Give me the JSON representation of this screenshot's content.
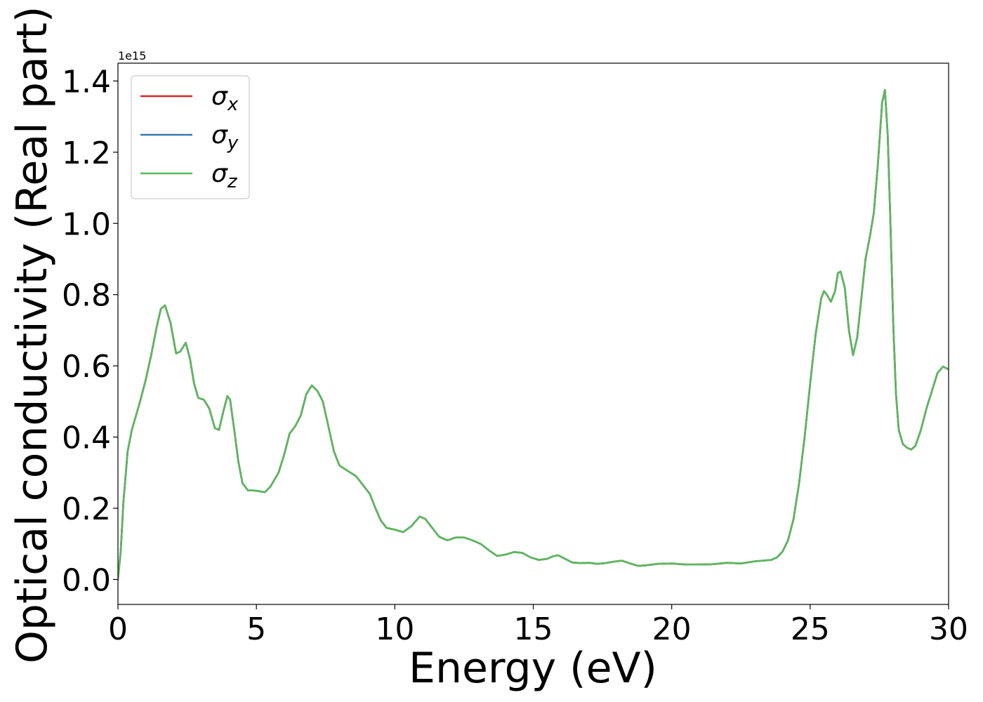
{
  "chart_data": {
    "type": "line",
    "title": "",
    "xlabel": "Energy (eV)",
    "ylabel": "Optical conductivity (Real part)",
    "y_offset_text": "1e15",
    "xlim": [
      0,
      30
    ],
    "ylim": [
      -0.07,
      1.45
    ],
    "x_ticks": [
      0,
      5,
      10,
      15,
      20,
      25,
      30
    ],
    "x_tick_labels": [
      "0",
      "5",
      "10",
      "15",
      "20",
      "25",
      "30"
    ],
    "y_ticks": [
      0.0,
      0.2,
      0.4,
      0.6,
      0.8,
      1.0,
      1.2,
      1.4
    ],
    "y_tick_labels": [
      "0.0",
      "0.2",
      "0.4",
      "0.6",
      "0.8",
      "1.0",
      "1.2",
      "1.4"
    ],
    "grid": false,
    "legend_position": "top-left",
    "series": [
      {
        "name": "σx",
        "name_base": "σ",
        "name_sub": "x",
        "color": "#d62728",
        "x": [
          0,
          0.1,
          0.2,
          0.35,
          0.5,
          0.8,
          1.0,
          1.2,
          1.4,
          1.55,
          1.7,
          1.9,
          2.1,
          2.25,
          2.45,
          2.6,
          2.75,
          2.9,
          3.1,
          3.3,
          3.5,
          3.65,
          3.8,
          3.95,
          4.05,
          4.2,
          4.35,
          4.5,
          4.7,
          4.9,
          5.1,
          5.3,
          5.5,
          5.8,
          6.0,
          6.2,
          6.4,
          6.6,
          6.8,
          7.0,
          7.2,
          7.4,
          7.6,
          7.8,
          8.0,
          8.3,
          8.6,
          8.9,
          9.1,
          9.3,
          9.5,
          9.7,
          10.0,
          10.3,
          10.6,
          10.9,
          11.1,
          11.3,
          11.6,
          11.9,
          12.2,
          12.5,
          12.8,
          13.1,
          13.4,
          13.7,
          14.0,
          14.3,
          14.6,
          14.9,
          15.2,
          15.5,
          15.7,
          15.9,
          16.1,
          16.4,
          16.7,
          17.0,
          17.3,
          17.6,
          17.9,
          18.2,
          18.5,
          18.8,
          19.1,
          19.5,
          20.0,
          20.5,
          21.0,
          21.5,
          22.0,
          22.5,
          23.0,
          23.3,
          23.6,
          23.8,
          24.0,
          24.2,
          24.4,
          24.6,
          24.8,
          25.0,
          25.2,
          25.4,
          25.5,
          25.6,
          25.75,
          25.9,
          26.0,
          26.1,
          26.25,
          26.4,
          26.55,
          26.7,
          26.85,
          27.0,
          27.15,
          27.3,
          27.45,
          27.6,
          27.7,
          27.8,
          27.9,
          28.0,
          28.1,
          28.2,
          28.35,
          28.5,
          28.65,
          28.8,
          29.0,
          29.2,
          29.4,
          29.6,
          29.8,
          30.0
        ],
        "values": [
          0.0,
          0.08,
          0.22,
          0.36,
          0.42,
          0.5,
          0.56,
          0.63,
          0.71,
          0.76,
          0.77,
          0.72,
          0.635,
          0.64,
          0.665,
          0.62,
          0.55,
          0.51,
          0.505,
          0.48,
          0.425,
          0.42,
          0.47,
          0.515,
          0.505,
          0.42,
          0.33,
          0.27,
          0.25,
          0.25,
          0.248,
          0.245,
          0.26,
          0.3,
          0.35,
          0.41,
          0.43,
          0.46,
          0.52,
          0.545,
          0.53,
          0.5,
          0.43,
          0.36,
          0.32,
          0.305,
          0.29,
          0.26,
          0.24,
          0.2,
          0.165,
          0.145,
          0.14,
          0.133,
          0.15,
          0.177,
          0.17,
          0.15,
          0.12,
          0.11,
          0.118,
          0.118,
          0.11,
          0.1,
          0.082,
          0.066,
          0.07,
          0.077,
          0.075,
          0.062,
          0.055,
          0.058,
          0.065,
          0.068,
          0.06,
          0.048,
          0.046,
          0.047,
          0.044,
          0.046,
          0.05,
          0.053,
          0.045,
          0.038,
          0.04,
          0.044,
          0.045,
          0.042,
          0.042,
          0.043,
          0.047,
          0.045,
          0.051,
          0.053,
          0.055,
          0.062,
          0.078,
          0.11,
          0.17,
          0.27,
          0.4,
          0.55,
          0.69,
          0.79,
          0.81,
          0.8,
          0.78,
          0.81,
          0.86,
          0.865,
          0.82,
          0.7,
          0.63,
          0.68,
          0.79,
          0.9,
          0.96,
          1.03,
          1.17,
          1.34,
          1.375,
          1.25,
          1.0,
          0.72,
          0.52,
          0.42,
          0.38,
          0.37,
          0.365,
          0.375,
          0.42,
          0.48,
          0.53,
          0.58,
          0.598,
          0.59
        ]
      },
      {
        "name": "σy",
        "name_base": "σ",
        "name_sub": "y",
        "color": "#3a78b0",
        "x": [
          0,
          0.1,
          0.2,
          0.35,
          0.5,
          0.8,
          1.0,
          1.2,
          1.4,
          1.55,
          1.7,
          1.9,
          2.1,
          2.25,
          2.45,
          2.6,
          2.75,
          2.9,
          3.1,
          3.3,
          3.5,
          3.65,
          3.8,
          3.95,
          4.05,
          4.2,
          4.35,
          4.5,
          4.7,
          4.9,
          5.1,
          5.3,
          5.5,
          5.8,
          6.0,
          6.2,
          6.4,
          6.6,
          6.8,
          7.0,
          7.2,
          7.4,
          7.6,
          7.8,
          8.0,
          8.3,
          8.6,
          8.9,
          9.1,
          9.3,
          9.5,
          9.7,
          10.0,
          10.3,
          10.6,
          10.9,
          11.1,
          11.3,
          11.6,
          11.9,
          12.2,
          12.5,
          12.8,
          13.1,
          13.4,
          13.7,
          14.0,
          14.3,
          14.6,
          14.9,
          15.2,
          15.5,
          15.7,
          15.9,
          16.1,
          16.4,
          16.7,
          17.0,
          17.3,
          17.6,
          17.9,
          18.2,
          18.5,
          18.8,
          19.1,
          19.5,
          20.0,
          20.5,
          21.0,
          21.5,
          22.0,
          22.5,
          23.0,
          23.3,
          23.6,
          23.8,
          24.0,
          24.2,
          24.4,
          24.6,
          24.8,
          25.0,
          25.2,
          25.4,
          25.5,
          25.6,
          25.75,
          25.9,
          26.0,
          26.1,
          26.25,
          26.4,
          26.55,
          26.7,
          26.85,
          27.0,
          27.15,
          27.3,
          27.45,
          27.6,
          27.7,
          27.8,
          27.9,
          28.0,
          28.1,
          28.2,
          28.35,
          28.5,
          28.65,
          28.8,
          29.0,
          29.2,
          29.4,
          29.6,
          29.8,
          30.0
        ],
        "values": [
          0.0,
          0.08,
          0.22,
          0.36,
          0.42,
          0.5,
          0.56,
          0.63,
          0.71,
          0.76,
          0.77,
          0.72,
          0.635,
          0.64,
          0.665,
          0.62,
          0.55,
          0.51,
          0.505,
          0.48,
          0.425,
          0.42,
          0.47,
          0.515,
          0.505,
          0.42,
          0.33,
          0.27,
          0.25,
          0.25,
          0.248,
          0.245,
          0.26,
          0.3,
          0.35,
          0.41,
          0.43,
          0.46,
          0.52,
          0.545,
          0.53,
          0.5,
          0.43,
          0.36,
          0.32,
          0.305,
          0.29,
          0.26,
          0.24,
          0.2,
          0.165,
          0.145,
          0.14,
          0.133,
          0.15,
          0.177,
          0.17,
          0.15,
          0.12,
          0.11,
          0.118,
          0.118,
          0.11,
          0.1,
          0.082,
          0.066,
          0.07,
          0.077,
          0.075,
          0.062,
          0.055,
          0.058,
          0.065,
          0.068,
          0.06,
          0.048,
          0.046,
          0.047,
          0.044,
          0.046,
          0.05,
          0.053,
          0.045,
          0.038,
          0.04,
          0.044,
          0.045,
          0.042,
          0.042,
          0.043,
          0.047,
          0.045,
          0.051,
          0.053,
          0.055,
          0.062,
          0.078,
          0.11,
          0.17,
          0.27,
          0.4,
          0.55,
          0.69,
          0.79,
          0.81,
          0.8,
          0.78,
          0.81,
          0.86,
          0.865,
          0.82,
          0.7,
          0.63,
          0.68,
          0.79,
          0.9,
          0.96,
          1.03,
          1.17,
          1.34,
          1.375,
          1.25,
          1.0,
          0.72,
          0.52,
          0.42,
          0.38,
          0.37,
          0.365,
          0.375,
          0.42,
          0.48,
          0.53,
          0.58,
          0.598,
          0.59
        ]
      },
      {
        "name": "σz",
        "name_base": "σ",
        "name_sub": "z",
        "color": "#5cb85c",
        "x": [
          0,
          0.1,
          0.2,
          0.35,
          0.5,
          0.8,
          1.0,
          1.2,
          1.4,
          1.55,
          1.7,
          1.9,
          2.1,
          2.25,
          2.45,
          2.6,
          2.75,
          2.9,
          3.1,
          3.3,
          3.5,
          3.65,
          3.8,
          3.95,
          4.05,
          4.2,
          4.35,
          4.5,
          4.7,
          4.9,
          5.1,
          5.3,
          5.5,
          5.8,
          6.0,
          6.2,
          6.4,
          6.6,
          6.8,
          7.0,
          7.2,
          7.4,
          7.6,
          7.8,
          8.0,
          8.3,
          8.6,
          8.9,
          9.1,
          9.3,
          9.5,
          9.7,
          10.0,
          10.3,
          10.6,
          10.9,
          11.1,
          11.3,
          11.6,
          11.9,
          12.2,
          12.5,
          12.8,
          13.1,
          13.4,
          13.7,
          14.0,
          14.3,
          14.6,
          14.9,
          15.2,
          15.5,
          15.7,
          15.9,
          16.1,
          16.4,
          16.7,
          17.0,
          17.3,
          17.6,
          17.9,
          18.2,
          18.5,
          18.8,
          19.1,
          19.5,
          20.0,
          20.5,
          21.0,
          21.5,
          22.0,
          22.5,
          23.0,
          23.3,
          23.6,
          23.8,
          24.0,
          24.2,
          24.4,
          24.6,
          24.8,
          25.0,
          25.2,
          25.4,
          25.5,
          25.6,
          25.75,
          25.9,
          26.0,
          26.1,
          26.25,
          26.4,
          26.55,
          26.7,
          26.85,
          27.0,
          27.15,
          27.3,
          27.45,
          27.6,
          27.7,
          27.8,
          27.9,
          28.0,
          28.1,
          28.2,
          28.35,
          28.5,
          28.65,
          28.8,
          29.0,
          29.2,
          29.4,
          29.6,
          29.8,
          30.0
        ],
        "values": [
          0.0,
          0.08,
          0.22,
          0.36,
          0.42,
          0.5,
          0.56,
          0.63,
          0.71,
          0.76,
          0.77,
          0.72,
          0.635,
          0.64,
          0.665,
          0.62,
          0.55,
          0.51,
          0.505,
          0.48,
          0.425,
          0.42,
          0.47,
          0.515,
          0.505,
          0.42,
          0.33,
          0.27,
          0.25,
          0.25,
          0.248,
          0.245,
          0.26,
          0.3,
          0.35,
          0.41,
          0.43,
          0.46,
          0.52,
          0.545,
          0.53,
          0.5,
          0.43,
          0.36,
          0.32,
          0.305,
          0.29,
          0.26,
          0.24,
          0.2,
          0.165,
          0.145,
          0.14,
          0.133,
          0.15,
          0.177,
          0.17,
          0.15,
          0.12,
          0.11,
          0.118,
          0.118,
          0.11,
          0.1,
          0.082,
          0.066,
          0.07,
          0.077,
          0.075,
          0.062,
          0.055,
          0.058,
          0.065,
          0.068,
          0.06,
          0.048,
          0.046,
          0.047,
          0.044,
          0.046,
          0.05,
          0.053,
          0.045,
          0.038,
          0.04,
          0.044,
          0.045,
          0.042,
          0.042,
          0.043,
          0.047,
          0.045,
          0.051,
          0.053,
          0.055,
          0.062,
          0.078,
          0.11,
          0.17,
          0.27,
          0.4,
          0.55,
          0.69,
          0.79,
          0.81,
          0.8,
          0.78,
          0.81,
          0.86,
          0.865,
          0.82,
          0.7,
          0.63,
          0.68,
          0.79,
          0.9,
          0.96,
          1.03,
          1.17,
          1.34,
          1.375,
          1.25,
          1.0,
          0.72,
          0.52,
          0.42,
          0.38,
          0.37,
          0.365,
          0.375,
          0.42,
          0.48,
          0.53,
          0.58,
          0.598,
          0.59
        ]
      }
    ]
  }
}
